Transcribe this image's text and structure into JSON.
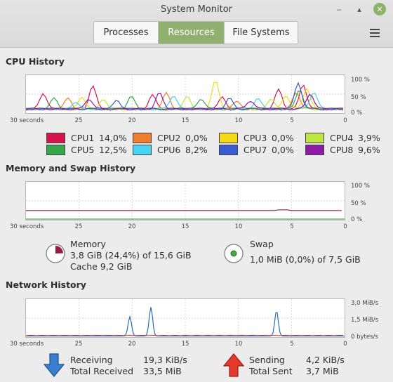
{
  "window": {
    "title": "System Monitor"
  },
  "tabs": [
    {
      "label": "Processes",
      "active": false
    },
    {
      "label": "Resources",
      "active": true
    },
    {
      "label": "File Systems",
      "active": false
    }
  ],
  "axis": {
    "x_labels": [
      "30 seconds",
      "25",
      "20",
      "15",
      "10",
      "5",
      "0"
    ],
    "cpu_y": [
      "100 %",
      "50 %",
      "0 %"
    ],
    "mem_y": [
      "100 %",
      "50 %",
      "0 %"
    ],
    "net_y": [
      "3,0 MiB/s",
      "1,5 MiB/s",
      "0 bytes/s"
    ]
  },
  "cpu": {
    "title": "CPU History",
    "cores": [
      {
        "name": "CPU1",
        "value": "14,0%",
        "color": "#d6134a"
      },
      {
        "name": "CPU2",
        "value": "0,0%",
        "color": "#ef7d2d"
      },
      {
        "name": "CPU3",
        "value": "0,0%",
        "color": "#f6d916"
      },
      {
        "name": "CPU4",
        "value": "3,9%",
        "color": "#bde642"
      },
      {
        "name": "CPU5",
        "value": "12,5%",
        "color": "#35a64a"
      },
      {
        "name": "CPU6",
        "value": "8,2%",
        "color": "#46d3f4"
      },
      {
        "name": "CPU7",
        "value": "0,0%",
        "color": "#3a5bd2"
      },
      {
        "name": "CPU8",
        "value": "9,6%",
        "color": "#8e1aa9"
      }
    ]
  },
  "memory": {
    "title": "Memory and Swap History",
    "memory_label": "Memory",
    "memory_usage": "3,8 GiB (24,4%) of 15,6 GiB",
    "cache": "Cache 9,2 GiB",
    "memory_color": "#9a1a44",
    "memory_fraction": 0.244,
    "swap_label": "Swap",
    "swap_usage": "1,0 MiB (0,0%) of 7,5 GiB",
    "swap_color": "#4aa34a"
  },
  "network": {
    "title": "Network History",
    "receiving_label": "Receiving",
    "receiving_value": "19,3 KiB/s",
    "total_received_label": "Total Received",
    "total_received_value": "33,5 MiB",
    "sending_label": "Sending",
    "sending_value": "4,2 KiB/s",
    "total_sent_label": "Total Sent",
    "total_sent_value": "3,7 MiB",
    "receive_color": "#2c6bb5",
    "send_color": "#d62c2c"
  }
}
